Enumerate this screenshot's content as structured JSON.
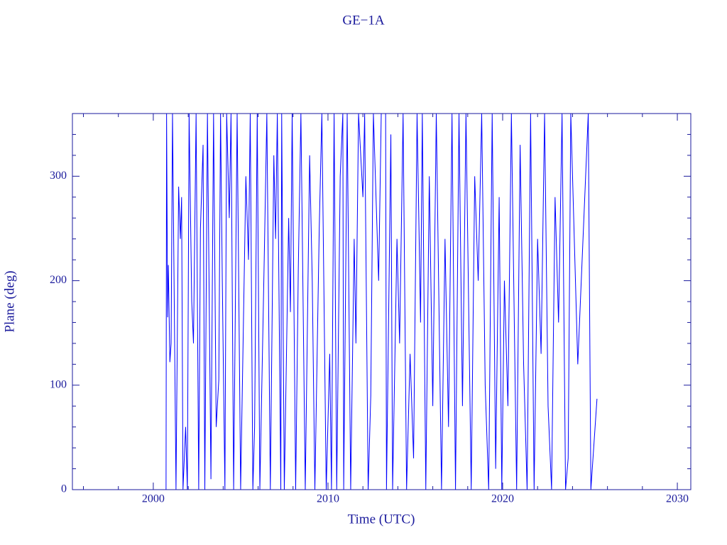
{
  "chart_data": {
    "type": "line",
    "title": "GE−1A",
    "xlabel": "Time (UTC)",
    "ylabel": "Plane (deg)",
    "axis_color": "#1a1a9c",
    "xlim": [
      1995.37,
      2030.77
    ],
    "ylim": [
      0,
      360
    ],
    "xticks": [
      2000,
      2010,
      2020,
      2030
    ],
    "yticks": [
      0,
      100,
      200,
      300
    ],
    "xminorticks": [
      1996,
      1998,
      2002,
      2004,
      2006,
      2008,
      2012,
      2014,
      2016,
      2018,
      2022,
      2024,
      2026,
      2028
    ],
    "yminorticks": [
      20,
      40,
      60,
      80,
      120,
      140,
      160,
      180,
      220,
      240,
      260,
      280,
      320,
      340
    ],
    "x": [
      2000.73,
      2000.76,
      2000.82,
      2000.86,
      2000.95,
      2001.02,
      2001.1,
      2001.3,
      2001.45,
      2001.55,
      2001.62,
      2001.7,
      2001.85,
      2001.95,
      2002.05,
      2002.2,
      2002.3,
      2002.45,
      2002.6,
      2002.7,
      2002.85,
      2002.95,
      2003.1,
      2003.3,
      2003.45,
      2003.6,
      2003.75,
      2003.85,
      2003.95,
      2004.1,
      2004.2,
      2004.35,
      2004.45,
      2004.6,
      2004.8,
      2005.0,
      2005.3,
      2005.45,
      2005.55,
      2005.7,
      2005.8,
      2005.95,
      2006.1,
      2006.35,
      2006.5,
      2006.7,
      2006.9,
      2007.0,
      2007.1,
      2007.3,
      2007.35,
      2007.5,
      2007.75,
      2007.85,
      2007.95,
      2008.15,
      2008.3,
      2008.45,
      2008.7,
      2008.95,
      2009.1,
      2009.25,
      2009.5,
      2009.65,
      2009.9,
      2010.1,
      2010.2,
      2010.35,
      2010.5,
      2010.7,
      2010.85,
      2010.9,
      2011.1,
      2011.3,
      2011.5,
      2011.6,
      2011.75,
      2012.0,
      2012.1,
      2012.3,
      2012.45,
      2012.6,
      2012.9,
      2013.05,
      2013.3,
      2013.35,
      2013.6,
      2013.7,
      2013.95,
      2014.1,
      2014.3,
      2014.5,
      2014.7,
      2014.9,
      2015.1,
      2015.3,
      2015.4,
      2015.6,
      2015.8,
      2016.0,
      2016.2,
      2016.5,
      2016.7,
      2016.9,
      2017.1,
      2017.3,
      2017.5,
      2017.7,
      2017.9,
      2018.2,
      2018.4,
      2018.6,
      2018.8,
      2019.0,
      2019.2,
      2019.4,
      2019.6,
      2019.8,
      2019.95,
      2020.1,
      2020.3,
      2020.5,
      2020.8,
      2021.0,
      2021.2,
      2021.4,
      2021.6,
      2021.8,
      2022.0,
      2022.2,
      2022.4,
      2022.6,
      2022.8,
      2023.0,
      2023.2,
      2023.4,
      2023.6,
      2023.75,
      2023.9,
      2024.3,
      2024.9,
      2025.05,
      2025.4
    ],
    "series": [
      {
        "color": "#0000ff",
        "values": [
          0,
          360,
          165,
          215,
          122,
          140,
          360,
          0,
          290,
          240,
          280,
          0,
          60,
          0,
          360,
          180,
          140,
          360,
          0,
          250,
          330,
          0,
          360,
          10,
          360,
          60,
          105,
          360,
          200,
          0,
          360,
          260,
          360,
          0,
          360,
          0,
          300,
          220,
          360,
          0,
          60,
          360,
          0,
          220,
          360,
          0,
          320,
          240,
          360,
          0,
          360,
          0,
          260,
          170,
          360,
          0,
          210,
          360,
          0,
          320,
          200,
          0,
          250,
          360,
          0,
          130,
          0,
          360,
          0,
          300,
          360,
          0,
          360,
          0,
          240,
          140,
          360,
          280,
          360,
          0,
          90,
          360,
          200,
          360,
          360,
          0,
          340,
          0,
          240,
          140,
          360,
          0,
          130,
          30,
          360,
          160,
          360,
          0,
          300,
          80,
          360,
          0,
          240,
          60,
          360,
          0,
          360,
          80,
          360,
          0,
          300,
          200,
          360,
          100,
          0,
          360,
          20,
          280,
          0,
          200,
          80,
          360,
          0,
          330,
          120,
          0,
          360,
          0,
          240,
          130,
          360,
          80,
          0,
          280,
          160,
          360,
          0,
          30,
          360,
          120,
          360,
          0,
          87
        ]
      }
    ]
  }
}
